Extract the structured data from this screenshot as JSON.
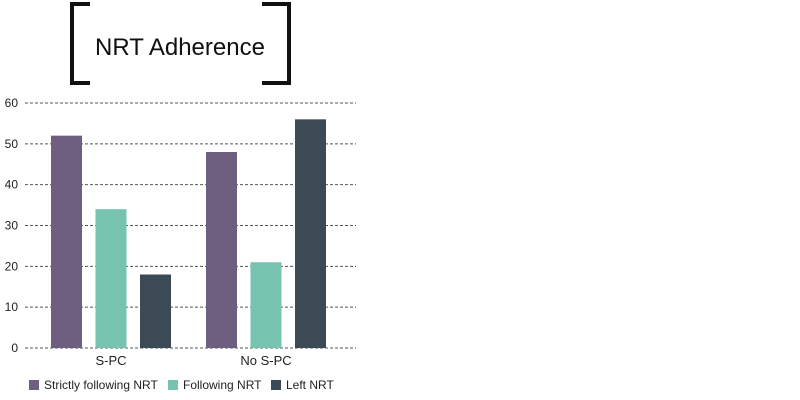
{
  "chart_data": {
    "type": "bar",
    "title": "NRT Adherence",
    "categories": [
      "S-PC",
      "No S-PC"
    ],
    "series": [
      {
        "name": "Strictly following NRT",
        "values": [
          52,
          48
        ],
        "color": "#6e5f80"
      },
      {
        "name": "Following NRT",
        "values": [
          34,
          21
        ],
        "color": "#76c4b0"
      },
      {
        "name": "Left NRT",
        "values": [
          18,
          56
        ],
        "color": "#3c4a56"
      }
    ],
    "xlabel": "",
    "ylabel": "",
    "ylim": [
      0,
      60
    ],
    "yticks": [
      0,
      10,
      20,
      30,
      40,
      50,
      60
    ],
    "grid": true,
    "legend_position": "bottom"
  }
}
